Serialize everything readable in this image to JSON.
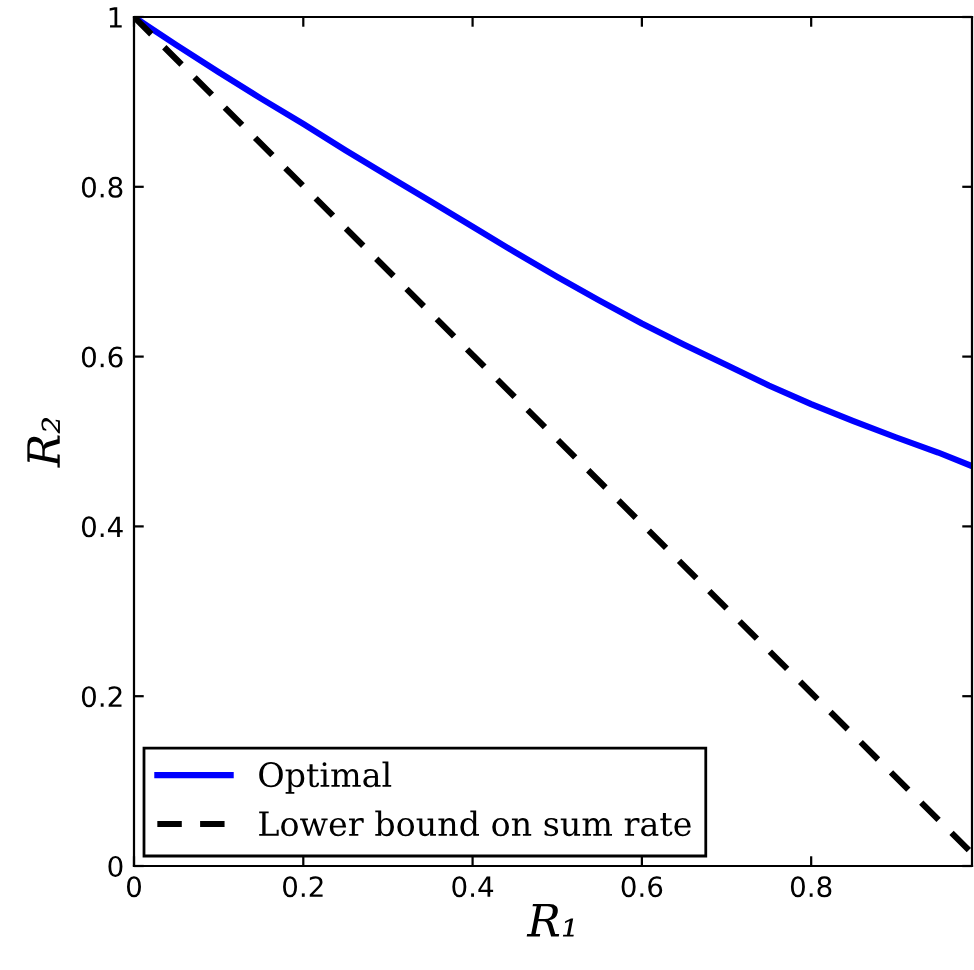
{
  "chart_data": {
    "type": "line",
    "xlabel": "R₁",
    "ylabel": "R₂",
    "xlim": [
      0,
      0.99
    ],
    "ylim": [
      0,
      1
    ],
    "xticks": [
      0,
      0.2,
      0.4,
      0.6,
      0.8
    ],
    "yticks": [
      0,
      0.2,
      0.4,
      0.6,
      0.8,
      1
    ],
    "grid": false,
    "legend": "bottom left",
    "series": [
      {
        "name": "Optimal",
        "color": "#0000ff",
        "line_style": "solid",
        "x": [
          0,
          0.05,
          0.1,
          0.15,
          0.2,
          0.25,
          0.3,
          0.35,
          0.4,
          0.45,
          0.5,
          0.55,
          0.6,
          0.65,
          0.7,
          0.75,
          0.8,
          0.85,
          0.9,
          0.95,
          0.99
        ],
        "values": [
          1,
          0.967,
          0.935,
          0.904,
          0.874,
          0.843,
          0.813,
          0.783,
          0.753,
          0.723,
          0.694,
          0.666,
          0.639,
          0.614,
          0.59,
          0.566,
          0.544,
          0.524,
          0.505,
          0.487,
          0.471
        ]
      },
      {
        "name": "Lower bound on sum rate",
        "color": "#000000",
        "line_style": "dashed",
        "x": [
          0,
          0.99
        ],
        "values": [
          1,
          0.015
        ]
      }
    ]
  }
}
